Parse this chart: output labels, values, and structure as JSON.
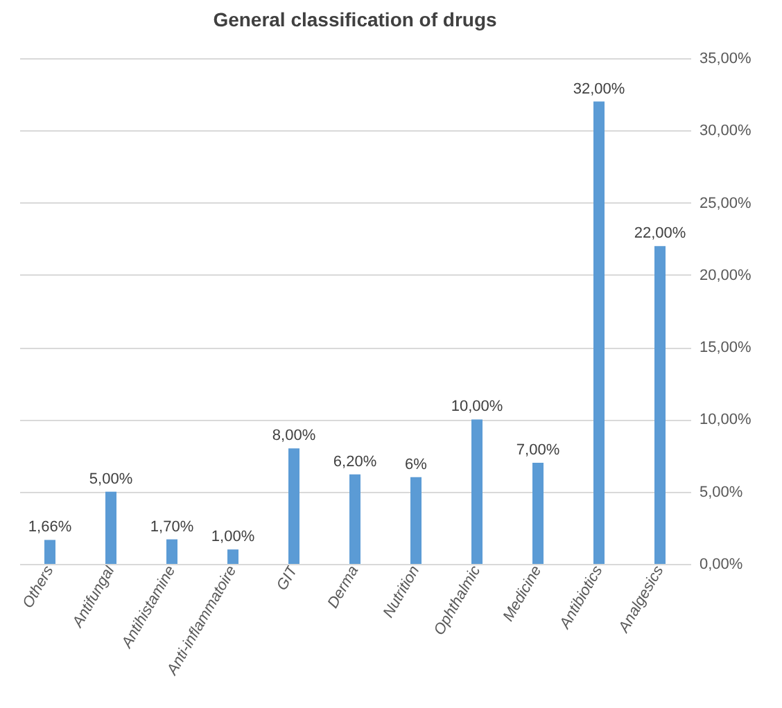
{
  "chart_data": {
    "type": "bar",
    "title": "General classification of drugs",
    "categories": [
      "Others",
      "Antifungal",
      "Antihistamine",
      "Anti-inflammatoire",
      "GIT",
      "Derma",
      "Nutrition",
      "Ophthalmic",
      "Medicine",
      "Antibiotics",
      "Analgesics"
    ],
    "series": [
      {
        "color": "#5b9bd5",
        "axis": "y2",
        "values": [
          1.66,
          5,
          1.7,
          1,
          8,
          6.2,
          6,
          10,
          7,
          32,
          22
        ],
        "value_labels": [
          "1,66%",
          "5,00%",
          "1,70%",
          "1,00%",
          "8,00%",
          "6,20%",
          "6%",
          "10,00%",
          "7,00%",
          "32,00%",
          "22,00%"
        ]
      }
    ],
    "y2lim": [
      0,
      35
    ],
    "y2ticks": [
      {
        "value": 0,
        "label": "0,00%"
      },
      {
        "value": 5,
        "label": "5,00%"
      },
      {
        "value": 10,
        "label": "10,00%"
      },
      {
        "value": 15,
        "label": "15,00%"
      },
      {
        "value": 20,
        "label": "20,00%"
      },
      {
        "value": 25,
        "label": "25,00%"
      },
      {
        "value": 30,
        "label": "30,00%"
      },
      {
        "value": 35,
        "label": "35,00%"
      }
    ],
    "grid": true
  }
}
